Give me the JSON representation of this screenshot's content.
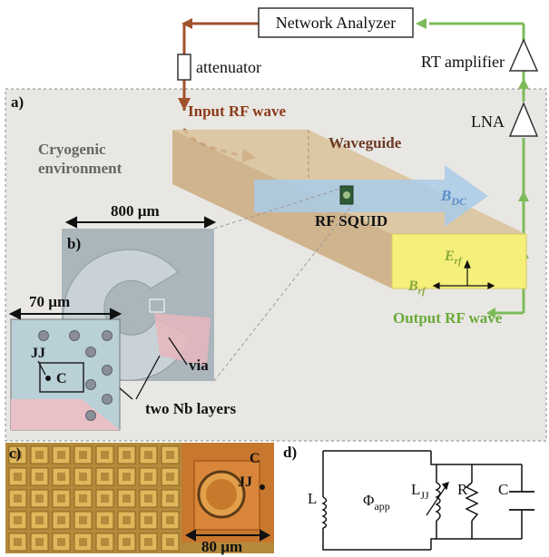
{
  "top": {
    "network_analyzer": "Network Analyzer",
    "attenuator": "attenuator",
    "rt_amplifier": "RT amplifier",
    "lna": "LNA"
  },
  "panel_a": {
    "label": "a)",
    "input_rf_wave": "Input RF wave",
    "environment_line1": "Cryogenic",
    "environment_line2": "environment",
    "waveguide": "Waveguide",
    "b_dc_main": "B",
    "b_dc_sub": "DC",
    "rf_squid": "RF SQUID",
    "e_rf_main": "E",
    "e_rf_sub": "rf",
    "b_rf_main": "B",
    "b_rf_sub": "rf",
    "output_rf_wave": "Output RF wave",
    "scale_800": "800 µm"
  },
  "panel_b": {
    "label": "b)",
    "scale_70": "70 µm",
    "jj": "JJ",
    "c": "C",
    "via": "via",
    "two_nb_layers": "two Nb layers"
  },
  "panel_c": {
    "label": "c)",
    "c": "C",
    "jj": "JJ",
    "scale_80": "80 µm"
  },
  "panel_d": {
    "label": "d)",
    "l": "L",
    "phi_main": "Φ",
    "phi_sub": "app",
    "ljj_main": "L",
    "ljj_sub": "JJ",
    "r": "R",
    "c": "C"
  },
  "colors": {
    "input_wire": "#a0522d",
    "output_wire": "#7dbb5a",
    "waveguide_top": "#d9c29a",
    "waveguide_front": "#c9a878",
    "waveguide_end": "#f4f07a",
    "bdc_arrow": "#a9cbe8",
    "text_input": "#8b3a1a",
    "text_output": "#6aaa3a",
    "text_grey": "#666666"
  }
}
